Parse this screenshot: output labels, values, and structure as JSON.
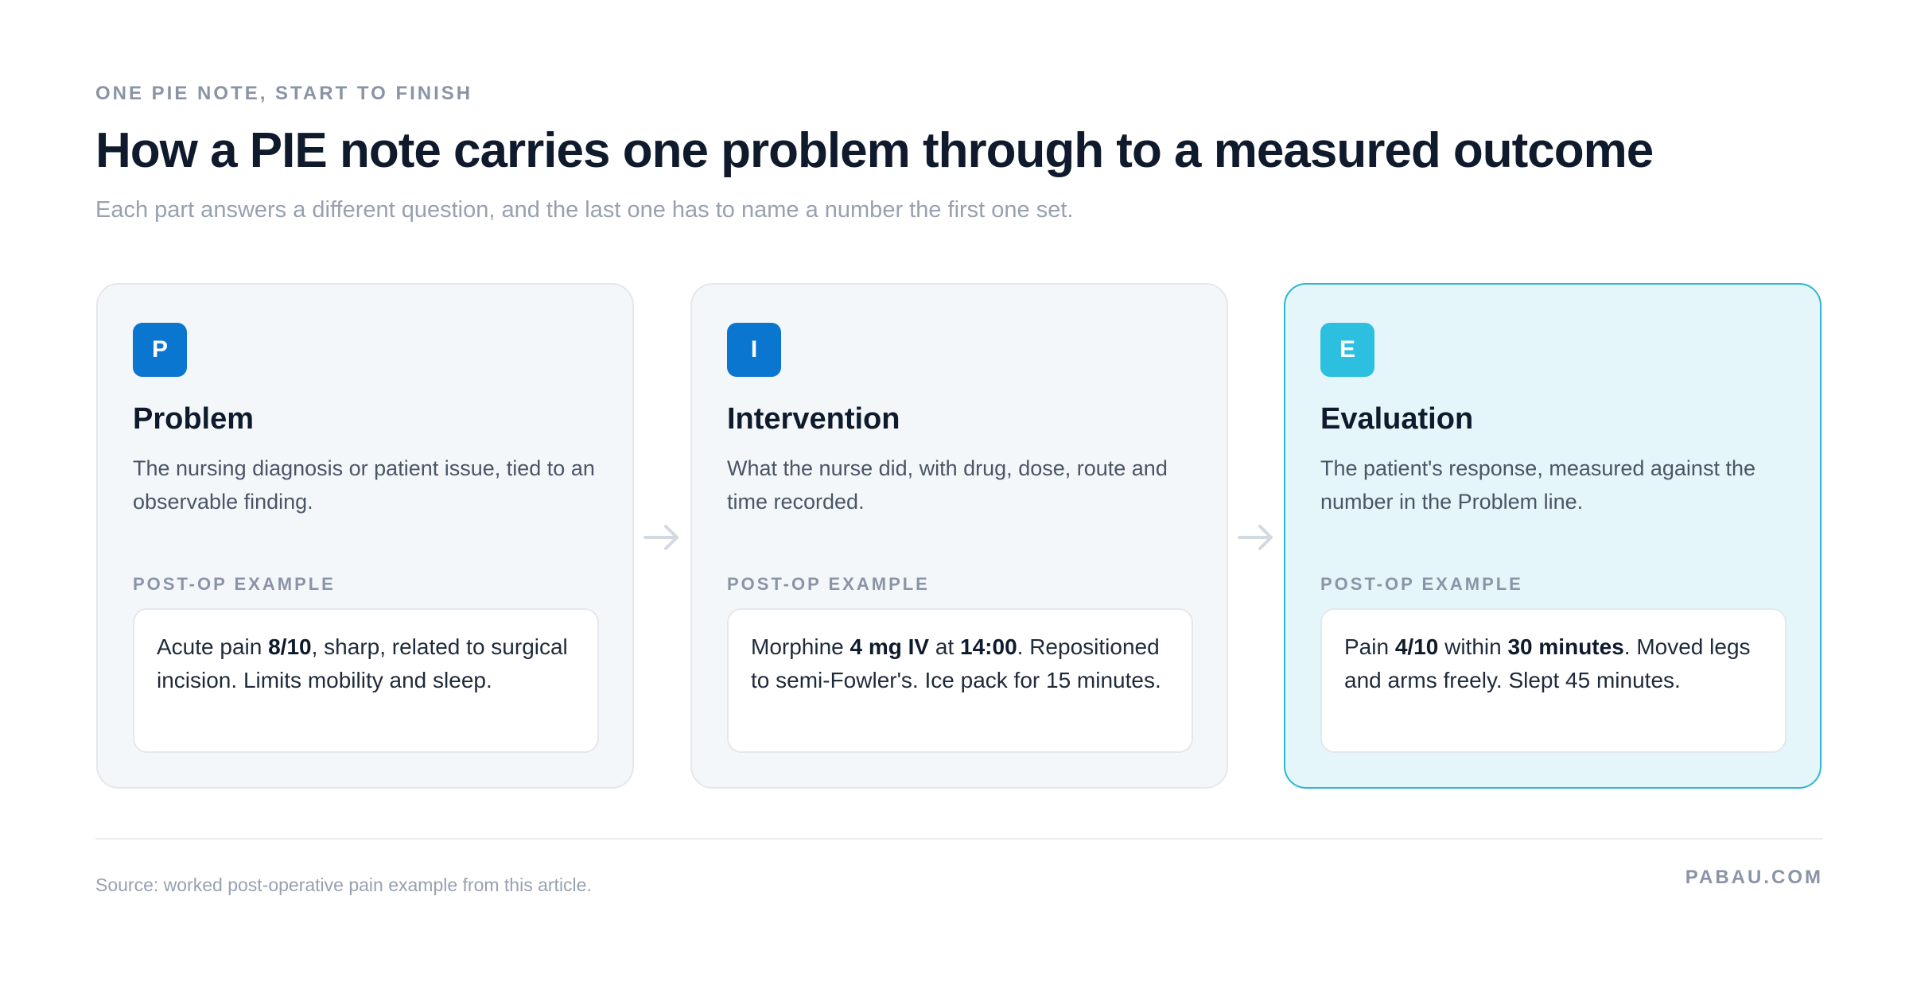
{
  "header": {
    "eyebrow": "ONE PIE NOTE, START TO FINISH",
    "title": "How a PIE note carries one problem through to a measured outcome",
    "subtitle": "Each part answers a different question, and the last one has to name a number the first one set."
  },
  "cards": [
    {
      "badge": "P",
      "title": "Problem",
      "description": "The nursing diagnosis or patient issue, tied to an observable finding.",
      "example_label": "POST-OP EXAMPLE",
      "example": [
        {
          "text": "Acute pain ",
          "bold": false
        },
        {
          "text": "8/10",
          "bold": true
        },
        {
          "text": ", sharp, related to surgical incision. Limits mobility and sleep.",
          "bold": false
        }
      ]
    },
    {
      "badge": "I",
      "title": "Intervention",
      "description": "What the nurse did, with drug, dose, route and time recorded.",
      "example_label": "POST-OP EXAMPLE",
      "example": [
        {
          "text": "Morphine ",
          "bold": false
        },
        {
          "text": "4 mg IV",
          "bold": true
        },
        {
          "text": " at ",
          "bold": false
        },
        {
          "text": "14:00",
          "bold": true
        },
        {
          "text": ". Repositioned to semi-Fowler's. Ice pack for 15 minutes.",
          "bold": false
        }
      ]
    },
    {
      "badge": "E",
      "title": "Evaluation",
      "description": "The patient's response, measured against the number in the Problem line.",
      "example_label": "POST-OP EXAMPLE",
      "example": [
        {
          "text": "Pain ",
          "bold": false
        },
        {
          "text": "4/10",
          "bold": true
        },
        {
          "text": " within ",
          "bold": false
        },
        {
          "text": "30 minutes",
          "bold": true
        },
        {
          "text": ". Moved legs and arms freely. Slept 45 minutes.",
          "bold": false
        }
      ]
    }
  ],
  "footer": {
    "source": "Source: worked post-operative pain example from this article.",
    "brand": "PABAU.COM"
  },
  "colors": {
    "badge_blue": "#0b76d0",
    "badge_cyan": "#2cbfe0",
    "highlight_border": "#2ab7d3",
    "highlight_bg": "#e5f6fa",
    "arrow": "#d3d9e0"
  },
  "icons": {
    "flow_arrow": "arrow-right-icon"
  }
}
